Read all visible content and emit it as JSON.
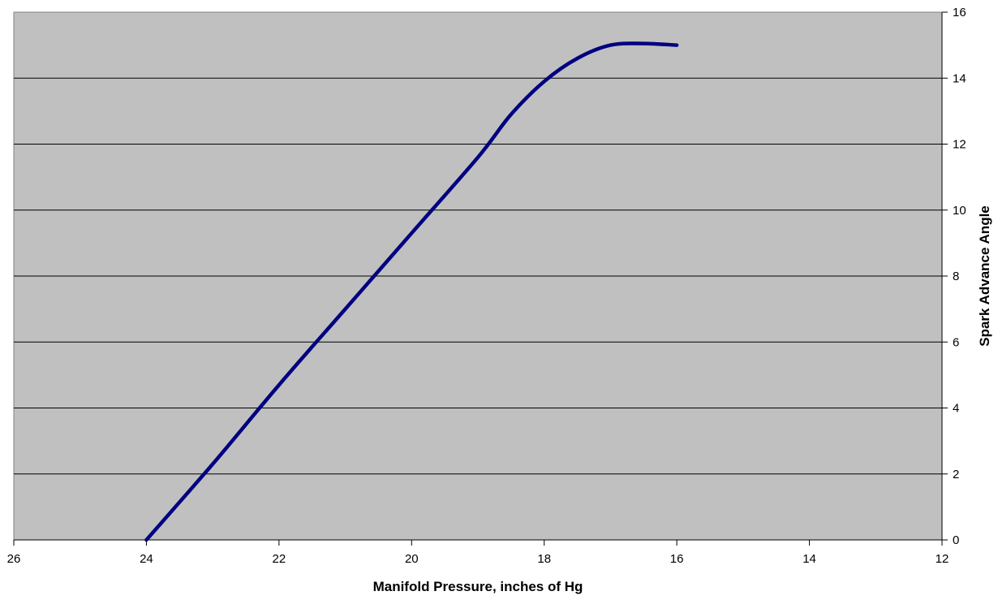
{
  "chart_data": {
    "type": "line",
    "title": "",
    "xlabel": "Manifold Pressure, inches of Hg",
    "ylabel": "Spark Advance Angle",
    "xlim": [
      26,
      12
    ],
    "ylim": [
      0,
      16
    ],
    "x_reversed": true,
    "y_axis_side": "right",
    "x_ticks": [
      26,
      24,
      22,
      20,
      18,
      16,
      14,
      12
    ],
    "y_ticks": [
      0,
      2,
      4,
      6,
      8,
      10,
      12,
      14,
      16
    ],
    "grid": "horizontal",
    "plot_background": "#c0c0c0",
    "series": [
      {
        "color": "#000080",
        "x": [
          24,
          23,
          22,
          21,
          20,
          19,
          18.5,
          18,
          17.5,
          17,
          16.5,
          16
        ],
        "y": [
          0,
          2.3,
          4.7,
          7.0,
          9.3,
          11.6,
          12.9,
          13.9,
          14.6,
          15.0,
          15.05,
          15.0
        ]
      }
    ]
  }
}
